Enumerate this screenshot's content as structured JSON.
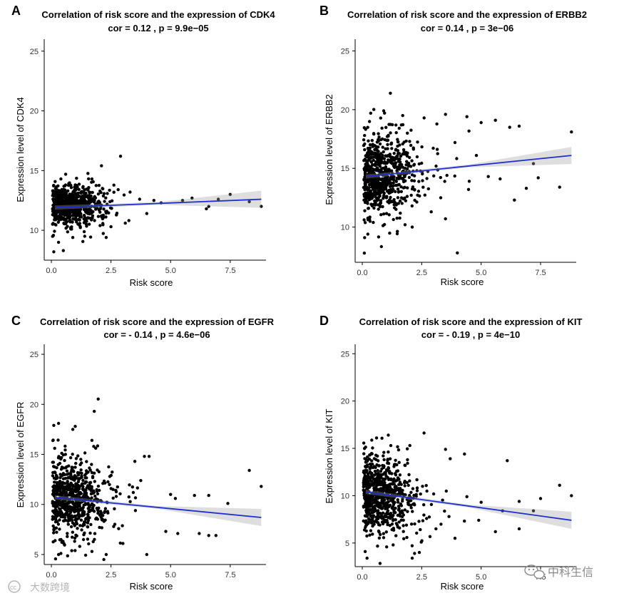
{
  "chart_data": [
    {
      "panel_letter": "A",
      "type": "scatter",
      "title": "Correlation of risk score and the expression of CDK4",
      "subtitle": "cor = 0.12 , p = 9.9e−05",
      "xlabel": "Risk score",
      "ylabel": "Expression level of CDK4",
      "xlim": [
        -0.3,
        9.0
      ],
      "ylim": [
        7.5,
        26.0
      ],
      "xticks": [
        "0.0",
        "2.5",
        "5.0",
        "7.5"
      ],
      "yticks": [
        "10",
        "15",
        "20",
        "25"
      ],
      "fit_line": {
        "x0": 0.15,
        "y0": 11.9,
        "x1": 8.8,
        "y1": 12.6,
        "color": "#1f2fcf"
      },
      "cloud": {
        "x_center": 0.8,
        "x_spread": 0.9,
        "y_center": 12.1,
        "y_spread": 0.8
      },
      "points": [
        [
          0.1,
          8.2
        ],
        [
          0.5,
          8.3
        ],
        [
          0.3,
          9.0
        ],
        [
          0.9,
          9.4
        ],
        [
          1.4,
          9.5
        ],
        [
          2.3,
          9.4
        ],
        [
          2.5,
          10.3
        ],
        [
          3.1,
          10.6
        ],
        [
          2.1,
          15.4
        ],
        [
          2.9,
          16.2
        ],
        [
          1.7,
          14.3
        ],
        [
          0.6,
          14.7
        ],
        [
          0.4,
          14.3
        ],
        [
          2.8,
          13.4
        ],
        [
          3.3,
          13.2
        ],
        [
          4.6,
          12.3
        ],
        [
          5.5,
          12.5
        ],
        [
          5.9,
          12.7
        ],
        [
          6.5,
          11.8
        ],
        [
          6.6,
          12.0
        ],
        [
          7.0,
          12.6
        ],
        [
          7.5,
          13.0
        ],
        [
          8.3,
          12.4
        ],
        [
          8.8,
          12.0
        ],
        [
          4.0,
          11.4
        ],
        [
          4.3,
          12.5
        ],
        [
          3.7,
          12.6
        ]
      ]
    },
    {
      "panel_letter": "B",
      "type": "scatter",
      "title": "Correlation of risk score and the expression of ERBB2",
      "subtitle": "cor = 0.14 , p = 3e−06",
      "xlabel": "Risk score",
      "ylabel": "Expression level of ERBB2",
      "xlim": [
        -0.3,
        9.0
      ],
      "ylim": [
        7.0,
        26.0
      ],
      "xticks": [
        "0.0",
        "2.5",
        "5.0",
        "7.5"
      ],
      "yticks": [
        "10",
        "15",
        "20",
        "25"
      ],
      "fit_line": {
        "x0": 0.15,
        "y0": 14.3,
        "x1": 8.8,
        "y1": 16.1,
        "color": "#1f2fcf"
      },
      "cloud": {
        "x_center": 0.8,
        "x_spread": 1.0,
        "y_center": 14.4,
        "y_spread": 1.7
      },
      "points": [
        [
          0.1,
          9.1
        ],
        [
          4.0,
          7.8
        ],
        [
          3.5,
          10.7
        ],
        [
          1.8,
          10.2
        ],
        [
          2.1,
          10.0
        ],
        [
          0.9,
          19.9
        ],
        [
          1.7,
          19.5
        ],
        [
          2.6,
          19.3
        ],
        [
          3.5,
          19.6
        ],
        [
          4.4,
          19.4
        ],
        [
          5.0,
          18.9
        ],
        [
          5.6,
          19.1
        ],
        [
          6.2,
          18.5
        ],
        [
          6.6,
          18.6
        ],
        [
          8.8,
          18.1
        ],
        [
          7.2,
          15.4
        ],
        [
          7.4,
          14.2
        ],
        [
          6.9,
          13.3
        ],
        [
          6.4,
          12.3
        ],
        [
          8.3,
          13.4
        ],
        [
          5.3,
          14.3
        ],
        [
          5.8,
          14.1
        ],
        [
          4.5,
          13.9
        ],
        [
          4.8,
          16.1
        ],
        [
          3.9,
          17.2
        ],
        [
          3.3,
          12.5
        ],
        [
          2.9,
          11.3
        ]
      ]
    },
    {
      "panel_letter": "C",
      "type": "scatter",
      "title": "Correlation of risk score and the expression of EGFR",
      "subtitle": "cor = - 0.14 , p = 4.6e−06",
      "xlabel": "Risk score",
      "ylabel": "Expression level of EGFR",
      "xlim": [
        -0.3,
        9.0
      ],
      "ylim": [
        4.0,
        26.0
      ],
      "xticks": [
        "0.0",
        "2.5",
        "5.0",
        "7.5"
      ],
      "yticks": [
        "5",
        "10",
        "15",
        "20",
        "25"
      ],
      "fit_line": {
        "x0": 0.15,
        "y0": 10.7,
        "x1": 8.8,
        "y1": 8.7,
        "color": "#1f2fcf"
      },
      "cloud": {
        "x_center": 0.8,
        "x_spread": 1.0,
        "y_center": 10.6,
        "y_spread": 1.9
      },
      "points": [
        [
          0.1,
          17.9
        ],
        [
          0.3,
          18.1
        ],
        [
          0.9,
          17.5
        ],
        [
          1.0,
          17.8
        ],
        [
          1.8,
          19.3
        ],
        [
          1.7,
          16.4
        ],
        [
          3.5,
          14.3
        ],
        [
          3.9,
          14.8
        ],
        [
          4.1,
          14.8
        ],
        [
          8.3,
          13.4
        ],
        [
          8.8,
          11.8
        ],
        [
          7.4,
          10.1
        ],
        [
          6.6,
          10.9
        ],
        [
          6.0,
          10.9
        ],
        [
          5.0,
          11.0
        ],
        [
          5.2,
          10.6
        ],
        [
          6.2,
          7.1
        ],
        [
          6.6,
          6.9
        ],
        [
          6.9,
          6.9
        ],
        [
          5.3,
          7.1
        ],
        [
          4.0,
          5.0
        ],
        [
          2.3,
          5.0
        ],
        [
          2.2,
          4.5
        ],
        [
          1.7,
          5.3
        ],
        [
          0.4,
          5.1
        ],
        [
          3.0,
          6.1
        ],
        [
          4.8,
          7.3
        ]
      ]
    },
    {
      "panel_letter": "D",
      "type": "scatter",
      "title": "Correlation of risk score and the expression of KIT",
      "subtitle": "cor = - 0.19 , p = 4e−10",
      "xlabel": "Risk score",
      "ylabel": "Expression level of KIT",
      "xlim": [
        -0.3,
        9.0
      ],
      "ylim": [
        2.5,
        26.0
      ],
      "xticks": [
        "0.0",
        "2.5",
        "5.0",
        "7.5"
      ],
      "yticks": [
        "5",
        "10",
        "15",
        "20",
        "25"
      ],
      "fit_line": {
        "x0": 0.15,
        "y0": 10.4,
        "x1": 8.8,
        "y1": 7.4,
        "color": "#1f2fcf"
      },
      "cloud": {
        "x_center": 0.8,
        "x_spread": 1.0,
        "y_center": 10.1,
        "y_spread": 2.0
      },
      "points": [
        [
          0.2,
          3.4
        ],
        [
          2.1,
          3.4
        ],
        [
          2.2,
          3.9
        ],
        [
          0.6,
          16.1
        ],
        [
          1.2,
          15.3
        ],
        [
          2.0,
          15.3
        ],
        [
          3.5,
          14.9
        ],
        [
          4.3,
          14.4
        ],
        [
          3.7,
          13.9
        ],
        [
          6.1,
          13.7
        ],
        [
          8.3,
          11.1
        ],
        [
          8.8,
          10.0
        ],
        [
          7.5,
          9.7
        ],
        [
          6.6,
          9.4
        ],
        [
          7.2,
          8.4
        ],
        [
          6.6,
          6.5
        ],
        [
          5.6,
          6.2
        ],
        [
          4.9,
          7.4
        ],
        [
          3.9,
          5.5
        ],
        [
          3.1,
          6.5
        ],
        [
          2.4,
          4.0
        ],
        [
          1.3,
          4.8
        ],
        [
          5.9,
          8.4
        ],
        [
          5.0,
          9.3
        ],
        [
          4.4,
          9.9
        ]
      ]
    }
  ],
  "watermark": {
    "left_text": "大数跨境",
    "right_text": "中科生信",
    "left_icon": "cc-logo-icon",
    "right_icon": "wechat-logo-icon"
  }
}
